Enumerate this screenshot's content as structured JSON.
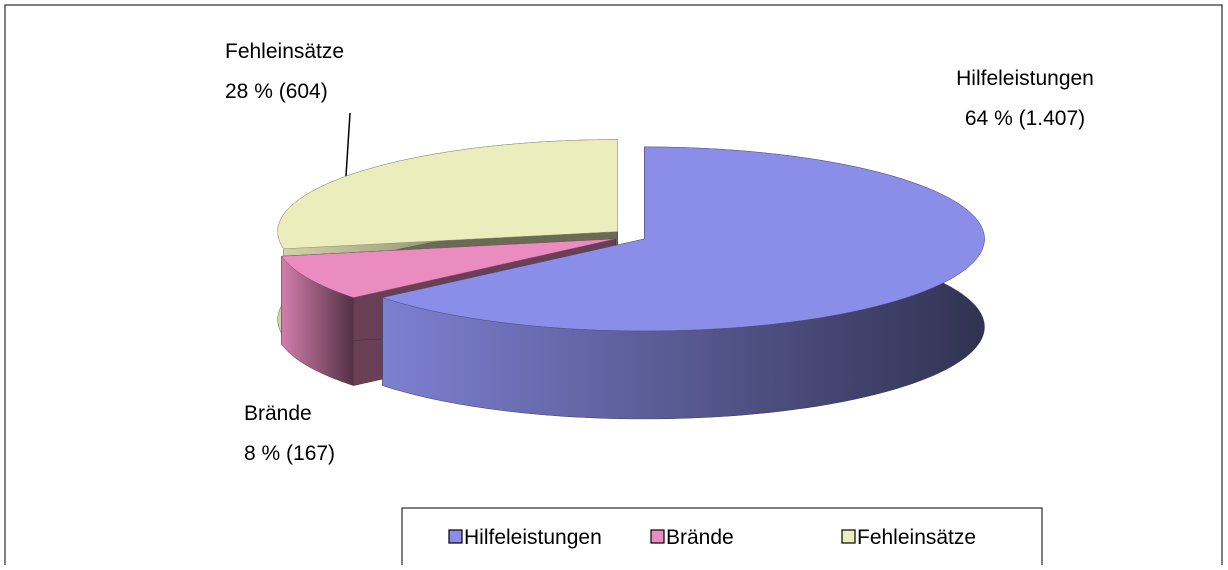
{
  "chart_data": {
    "type": "pie3d",
    "categories": [
      "Hilfeleistungen",
      "Brände",
      "Fehleinsätze"
    ],
    "series": [
      {
        "values": [
          64,
          8,
          28
        ],
        "value_labels": [
          "64 % (1.407)",
          "8 % (167)",
          "28 % (604)"
        ],
        "colors": [
          "#8b8ee8",
          "#ea8cc0",
          "#ecedbd"
        ]
      }
    ],
    "legend": "bottom"
  }
}
